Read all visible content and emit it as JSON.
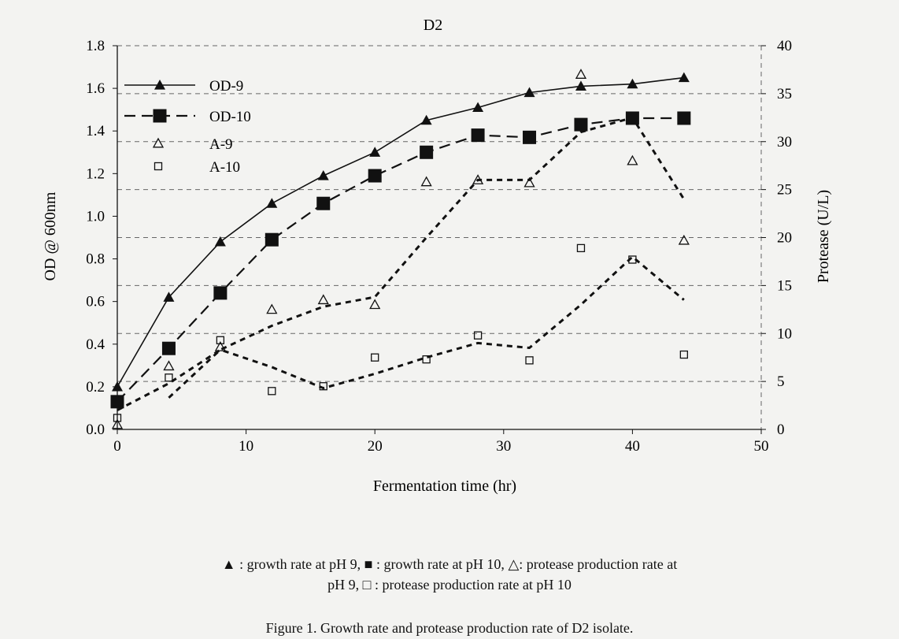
{
  "chart_data": {
    "type": "line",
    "title": "D2",
    "xlabel": "Fermentation time (hr)",
    "ylabel": "OD @ 600nm",
    "y2label": "Protease (U/L)",
    "xlim": [
      0,
      50
    ],
    "ylim": [
      0,
      1.8
    ],
    "y2lim": [
      0,
      40
    ],
    "x_ticks": [
      "0",
      "10",
      "20",
      "30",
      "40",
      "50"
    ],
    "y_ticks": [
      "0.0",
      "0.2",
      "0.4",
      "0.6",
      "0.8",
      "1.0",
      "1.2",
      "1.4",
      "1.6",
      "1.8"
    ],
    "y2_ticks": [
      "0",
      "5",
      "10",
      "15",
      "20",
      "25",
      "30",
      "35",
      "40"
    ],
    "grid": "horizontal dashed",
    "legend_position": "top-left",
    "series": [
      {
        "name": "OD-9",
        "axis": "left",
        "marker": "filled-triangle",
        "line": "solid",
        "color": "#111111",
        "x": [
          0,
          4,
          8,
          12,
          16,
          20,
          24,
          28,
          32,
          36,
          40,
          44
        ],
        "y": [
          0.2,
          0.62,
          0.88,
          1.06,
          1.19,
          1.3,
          1.45,
          1.51,
          1.58,
          1.61,
          1.62,
          1.65
        ]
      },
      {
        "name": "OD-10",
        "axis": "left",
        "marker": "filled-square",
        "line": "long-dash",
        "color": "#111111",
        "x": [
          0,
          4,
          8,
          12,
          16,
          20,
          24,
          28,
          32,
          36,
          40,
          44
        ],
        "y": [
          0.13,
          0.38,
          0.64,
          0.89,
          1.06,
          1.19,
          1.3,
          1.38,
          1.37,
          1.43,
          1.46,
          1.46
        ]
      },
      {
        "name": "A-9",
        "axis": "right",
        "marker": "open-triangle",
        "line": "short-dash",
        "color": "#111111",
        "x": [
          0,
          4,
          8,
          12,
          16,
          20,
          24,
          28,
          32,
          36,
          40,
          44
        ],
        "y": [
          0.5,
          6.6,
          8.6,
          12.5,
          13.5,
          13.0,
          25.8,
          26.0,
          25.7,
          37.0,
          28.0,
          19.7
        ]
      },
      {
        "name": "A-10",
        "axis": "right",
        "marker": "open-square",
        "line": "short-dash",
        "color": "#111111",
        "x": [
          0,
          4,
          8,
          12,
          16,
          20,
          24,
          28,
          32,
          36,
          40,
          44
        ],
        "y": [
          1.2,
          5.4,
          9.3,
          4.0,
          4.5,
          7.5,
          7.3,
          9.8,
          7.2,
          18.9,
          17.7,
          7.8
        ]
      }
    ],
    "trend_lines": [
      {
        "for": "A-9",
        "x": [
          4,
          8,
          12,
          16,
          20,
          24,
          28,
          32,
          36,
          40,
          44
        ],
        "y": [
          3.3,
          8.3,
          10.8,
          12.8,
          13.8,
          20.0,
          26.0,
          26.0,
          31.0,
          32.5,
          24.0
        ]
      },
      {
        "for": "A-10",
        "x": [
          0,
          4,
          8,
          12,
          16,
          20,
          24,
          28,
          32,
          36,
          40,
          44
        ],
        "y": [
          2.0,
          4.8,
          8.3,
          6.5,
          4.3,
          5.8,
          7.5,
          9.0,
          8.5,
          13.0,
          18.0,
          13.5
        ]
      }
    ]
  },
  "note": {
    "line1_a": ": growth rate at pH 9,",
    "line1_b": ": growth rate at pH 10,",
    "line1_c": ": protease production rate at",
    "line2_a": "pH 9,",
    "line2_b": ": protease production rate at pH 10"
  },
  "figure_caption": "Figure 1. Growth rate and protease production rate of D2 isolate."
}
